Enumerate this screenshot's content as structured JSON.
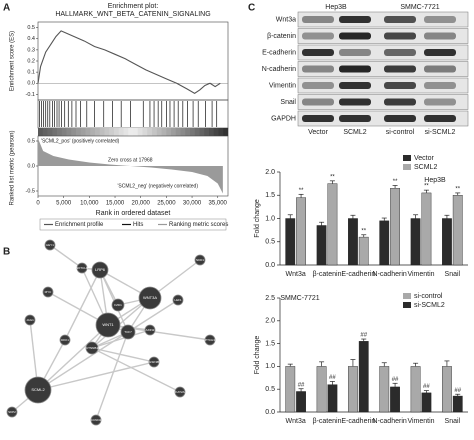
{
  "panel_labels": [
    "A",
    "B",
    "C"
  ],
  "gsea": {
    "title": "Enrichment plot:",
    "subtitle": "HALLMARK_WNT_BETA_CATENIN_SIGNALING",
    "es_label": "Enrichment score (ES)",
    "metric_label": "Ranked list metric (pearson)",
    "xlabel": "Rank in ordered dataset",
    "xlim": [
      0,
      37000
    ],
    "xticks": [
      0,
      {
        "value": 5000,
        "label": "5,000"
      },
      {
        "value": 10000,
        "label": "10,000"
      },
      {
        "value": 15000,
        "label": "15,000"
      },
      {
        "value": 20000,
        "label": "20,000"
      },
      {
        "value": 25000,
        "label": "25,000"
      },
      {
        "value": 30000,
        "label": "30,000"
      },
      {
        "value": 35000,
        "label": "35,000"
      }
    ],
    "es_ylim": [
      -0.15,
      0.55
    ],
    "es_yticks": [
      0.5,
      0.4,
      0.3,
      0.2,
      0.1,
      {
        "value": 0,
        "label": "0.0"
      },
      -0.1
    ],
    "es_x": [
      0,
      500,
      1500,
      2500,
      3500,
      4500,
      5500,
      7000,
      9000,
      11000,
      13000,
      15000,
      17000,
      19000,
      21000,
      23000,
      25000,
      27000,
      29000,
      30500,
      31500,
      32500,
      33500,
      34500,
      35500
    ],
    "es_y": [
      0,
      0.15,
      0.28,
      0.35,
      0.42,
      0.47,
      0.45,
      0.42,
      0.38,
      0.33,
      0.3,
      0.26,
      0.22,
      0.17,
      0.12,
      0.08,
      0.04,
      0,
      -0.05,
      -0.09,
      -0.06,
      -0.02,
      0,
      -0.03,
      0
    ],
    "hits": [
      300,
      700,
      1100,
      1500,
      1900,
      2300,
      2800,
      3200,
      3700,
      4100,
      4600,
      5200,
      5900,
      6600,
      7400,
      8300,
      9500,
      11000,
      12800,
      14500,
      16200,
      18000,
      20500,
      21800,
      22600,
      23400,
      24100,
      25000,
      25700,
      26500,
      27300,
      28200,
      29100,
      30200,
      31200,
      32600,
      33900,
      34800
    ],
    "metric_ylim": [
      -0.6,
      0.6
    ],
    "metric_yticks": [
      0.5,
      {
        "value": 0,
        "label": "0.0"
      },
      -0.5
    ],
    "metric_x": [
      0,
      1000,
      3000,
      6000,
      10000,
      14000,
      17968,
      22000,
      26000,
      30000,
      33000,
      35000,
      36000
    ],
    "metric_y": [
      0.55,
      0.3,
      0.2,
      0.13,
      0.07,
      0.03,
      0,
      -0.03,
      -0.07,
      -0.12,
      -0.2,
      -0.35,
      -0.55
    ],
    "pos_label": "'SCML2_pos' (positively correlated)",
    "zero_cross": "Zero cross at 17968",
    "neg_label": "'SCML2_neg' (negatively correlated)",
    "legend": [
      "Enrichment profile",
      "Hits",
      "Ranking metric scores"
    ],
    "es_color": "#555555",
    "metric_color": "#9a9a9a"
  },
  "network": {
    "nodes": [
      "SCML2",
      "WNT1",
      "LRP6",
      "WNT3A",
      "TCF7",
      "CTNNB1",
      "DKK1",
      "AXIN2",
      "FZD1",
      "GSK3B",
      "LEF1",
      "MYC",
      "NOTCH1",
      "JAG1",
      "HEY1",
      "NKD1",
      "PTCH1",
      "SKP2",
      "CCND2",
      "KAT2A"
    ],
    "edges": [
      [
        0,
        1
      ],
      [
        0,
        4
      ],
      [
        0,
        6
      ],
      [
        1,
        2
      ],
      [
        1,
        3
      ],
      [
        1,
        4
      ],
      [
        1,
        5
      ],
      [
        1,
        7
      ],
      [
        2,
        3
      ],
      [
        2,
        4
      ],
      [
        3,
        4
      ],
      [
        3,
        5
      ],
      [
        3,
        8
      ],
      [
        4,
        5
      ],
      [
        4,
        10
      ],
      [
        5,
        7
      ],
      [
        5,
        9
      ],
      [
        1,
        11
      ],
      [
        1,
        12
      ],
      [
        6,
        2
      ],
      [
        8,
        2
      ],
      [
        0,
        13
      ],
      [
        12,
        14
      ],
      [
        3,
        15
      ],
      [
        1,
        16
      ],
      [
        0,
        17
      ],
      [
        4,
        18
      ],
      [
        5,
        19
      ],
      [
        2,
        12
      ],
      [
        0,
        9
      ]
    ]
  },
  "blot": {
    "cell_lines": [
      "Hep3B",
      "SMMC-7721"
    ],
    "proteins": [
      "Wnt3a",
      "β-catenin",
      "E-cadherin",
      "N-cadherin",
      "Vimentin",
      "Snail",
      "GAPDH"
    ],
    "lanes": [
      "Vector",
      "SCML2",
      "si-control",
      "si-SCML2"
    ]
  },
  "chart_data": [
    {
      "type": "bar",
      "title": "Hep3B",
      "ylabel": "Fold change",
      "categories": [
        "Wnt3a",
        "β-catenin",
        "E-cadherin",
        "N-cadherin",
        "Vimentin",
        "Snail"
      ],
      "ylim": [
        0,
        2
      ],
      "yticks": [
        {
          "value": 0,
          "label": "0.0"
        },
        0.5,
        {
          "value": 1,
          "label": "1.0"
        },
        1.5,
        {
          "value": 2,
          "label": "2.0"
        }
      ],
      "series": [
        {
          "name": "Vector",
          "color": "#2b2b2b",
          "values": [
            1.0,
            0.85,
            1.0,
            0.95,
            1.0,
            1.0
          ],
          "errors": [
            0.08,
            0.07,
            0.07,
            0.06,
            0.08,
            0.07
          ]
        },
        {
          "name": "SCML2",
          "color": "#a9a9a9",
          "values": [
            1.45,
            1.75,
            0.6,
            1.65,
            1.55,
            1.5
          ],
          "errors": [
            0.07,
            0.06,
            0.05,
            0.06,
            0.06,
            0.05
          ],
          "annotations": [
            "**",
            "**",
            "**",
            "**",
            "**",
            "**"
          ]
        }
      ]
    },
    {
      "type": "bar",
      "title": "SMMC-7721",
      "ylabel": "Fold change",
      "categories": [
        "Wnt3a",
        "β-catenin",
        "E-cadherin",
        "N-cadherin",
        "Vimentin",
        "Snail"
      ],
      "ylim": [
        0,
        2.5
      ],
      "yticks": [
        {
          "value": 0,
          "label": "0.0"
        },
        0.5,
        {
          "value": 1,
          "label": "1.0"
        },
        1.5,
        {
          "value": 2,
          "label": "2.0"
        },
        2.5
      ],
      "series": [
        {
          "name": "si-control",
          "color": "#a9a9a9",
          "values": [
            1.0,
            1.0,
            1.0,
            1.0,
            1.0,
            1.0
          ],
          "errors": [
            0.05,
            0.1,
            0.15,
            0.08,
            0.07,
            0.12
          ]
        },
        {
          "name": "si-SCML2",
          "color": "#2b2b2b",
          "values": [
            0.45,
            0.6,
            1.55,
            0.55,
            0.42,
            0.35
          ],
          "errors": [
            0.06,
            0.07,
            0.05,
            0.08,
            0.05,
            0.04
          ],
          "annotations": [
            "##",
            "##",
            "##",
            "##",
            "##",
            "##"
          ]
        }
      ]
    }
  ]
}
